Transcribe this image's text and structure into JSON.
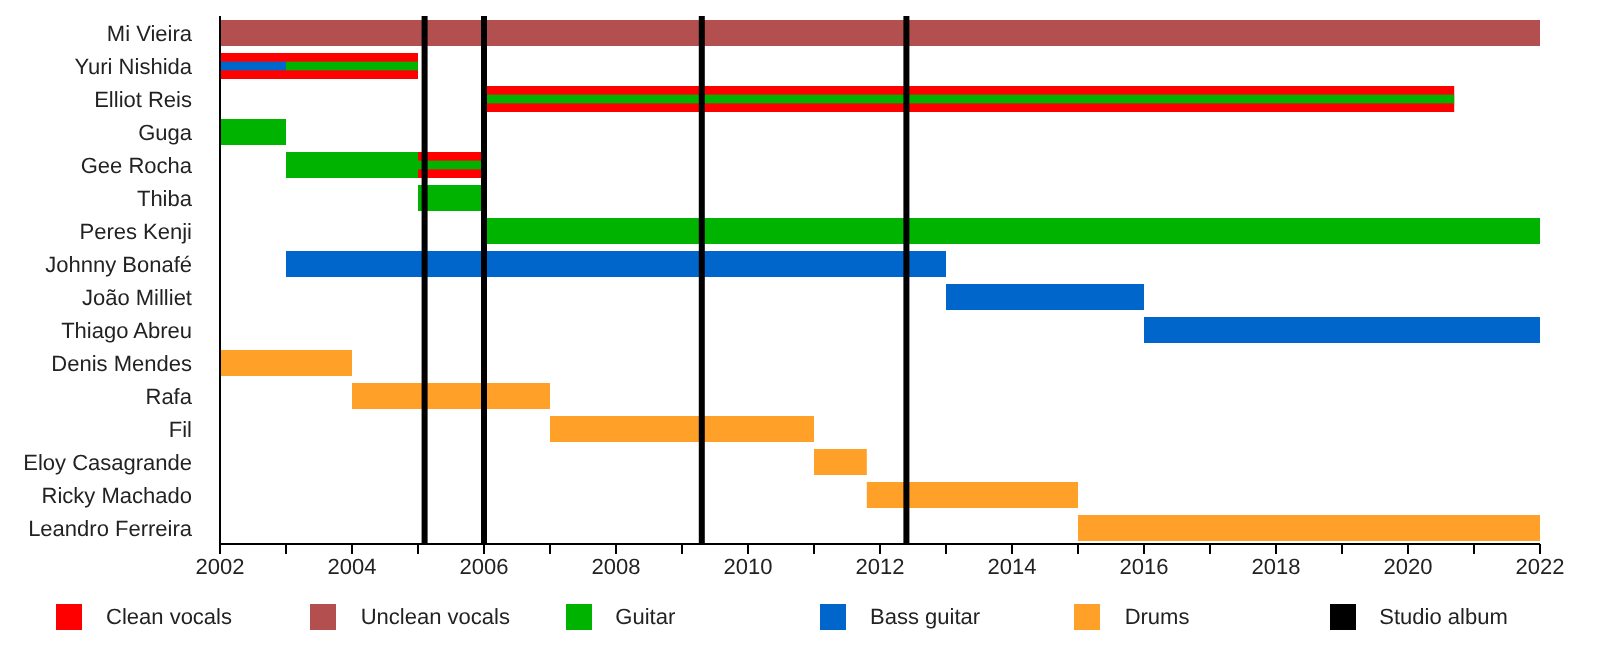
{
  "chart_data": {
    "type": "bar",
    "orientation": "horizontal",
    "categories": [
      "Mi Vieira",
      "Yuri Nishida",
      "Elliot Reis",
      "Guga",
      "Gee Rocha",
      "Thiba",
      "Peres Kenji",
      "Johnny Bonafé",
      "João Milliet",
      "Thiago Abreu",
      "Denis Mendes",
      "Rafa",
      "Fil",
      "Eloy Casagrande",
      "Ricky Machado",
      "Leandro Ferreira"
    ],
    "series": [
      {
        "name": "Clean vocals",
        "color": "#ff0000",
        "base": [
          null,
          2002,
          2006,
          null,
          2005,
          null,
          null,
          null,
          null,
          null,
          null,
          null,
          null,
          null,
          null,
          null
        ],
        "values": [
          null,
          3,
          14.7,
          null,
          1,
          null,
          null,
          null,
          null,
          null,
          null,
          null,
          null,
          null,
          null,
          null
        ]
      },
      {
        "name": "Unclean vocals",
        "color": "#b3504f",
        "base": [
          2002,
          null,
          null,
          null,
          null,
          null,
          null,
          null,
          null,
          null,
          null,
          null,
          null,
          null,
          null,
          null
        ],
        "values": [
          20,
          null,
          null,
          null,
          null,
          null,
          null,
          null,
          null,
          null,
          null,
          null,
          null,
          null,
          null,
          null
        ]
      },
      {
        "name": "Guitar",
        "color": "#00b300",
        "base": [
          null,
          2003,
          2006,
          2002,
          2003,
          2005,
          2006,
          null,
          null,
          null,
          null,
          null,
          null,
          null,
          null,
          null
        ],
        "values": [
          null,
          2,
          14.7,
          1,
          2,
          1,
          16,
          null,
          null,
          null,
          null,
          null,
          null,
          null,
          null,
          null
        ]
      },
      {
        "name": "Bass guitar",
        "color": "#0066cc",
        "base": [
          null,
          2002,
          null,
          null,
          null,
          null,
          null,
          2003,
          2013,
          2016,
          null,
          null,
          null,
          null,
          null,
          null
        ],
        "values": [
          null,
          1,
          null,
          null,
          null,
          null,
          null,
          10,
          3,
          6,
          null,
          null,
          null,
          null,
          null,
          null
        ]
      },
      {
        "name": "Drums",
        "color": "#ffa028",
        "base": [
          null,
          null,
          null,
          null,
          null,
          null,
          null,
          null,
          null,
          null,
          2002,
          2004,
          2007,
          2011,
          2011.8,
          2015
        ],
        "values": [
          null,
          null,
          null,
          null,
          null,
          null,
          null,
          null,
          null,
          null,
          2,
          3,
          4,
          0.8,
          3.2,
          7
        ]
      },
      {
        "color": "#00b300",
        "base": [
          null,
          null,
          null,
          null,
          2005,
          null,
          null,
          null,
          null,
          null,
          null,
          null,
          null,
          null,
          null,
          null
        ],
        "values": [
          null,
          null,
          null,
          null,
          1,
          null,
          null,
          null,
          null,
          null,
          null,
          null,
          null,
          null,
          null,
          null
        ]
      }
    ],
    "ref_lines": [
      {
        "axis": "x",
        "value": 2005.1,
        "label": "Studio album",
        "color": "#000000"
      },
      {
        "axis": "x",
        "value": 2006,
        "color": "#000000"
      },
      {
        "axis": "x",
        "value": 2009.3,
        "color": "#000000"
      },
      {
        "axis": "x",
        "value": 2012.4,
        "color": "#000000"
      }
    ],
    "xlim": [
      2002,
      2022
    ],
    "xticks": [
      2002,
      {
        "value": 2003,
        "label": null
      },
      2004,
      {
        "value": 2005,
        "label": null
      },
      2006,
      {
        "value": 2007,
        "label": null
      },
      2008,
      {
        "value": 2009,
        "label": null
      },
      2010,
      {
        "value": 2011,
        "label": null
      },
      2012,
      {
        "value": 2013,
        "label": null
      },
      2014,
      {
        "value": 2015,
        "label": null
      },
      2016,
      {
        "value": 2017,
        "label": null
      },
      2018,
      {
        "value": 2019,
        "label": null
      },
      2020,
      {
        "value": 2021,
        "label": null
      },
      2022
    ],
    "grid": false,
    "legend": "bottom"
  }
}
